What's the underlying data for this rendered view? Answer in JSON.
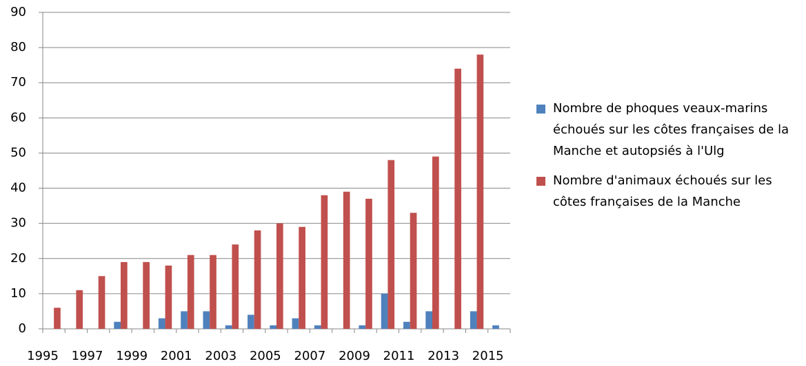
{
  "chart_data": {
    "type": "bar",
    "categories": [
      "1995",
      null,
      "1997",
      null,
      "1999",
      null,
      "2001",
      null,
      "2003",
      null,
      "2005",
      null,
      "2007",
      null,
      "2009",
      null,
      "2011",
      null,
      "2013",
      null,
      "2015"
    ],
    "series": [
      {
        "name": "Nombre de phoques veaux-marins échoués sur les côtes françaises de la Manche et autopsiés à l'Ulg",
        "color": "#4f81bd",
        "values": [
          0,
          0,
          0,
          2,
          0,
          3,
          5,
          5,
          1,
          4,
          1,
          3,
          1,
          0,
          1,
          10,
          2,
          5,
          0,
          5,
          1
        ]
      },
      {
        "name": "Nombre d'animaux échoués sur les côtes françaises de la Manche",
        "color": "#c0504d",
        "values": [
          6,
          11,
          15,
          19,
          19,
          18,
          21,
          21,
          24,
          28,
          30,
          29,
          38,
          39,
          37,
          48,
          33,
          49,
          74,
          78,
          0
        ]
      }
    ],
    "ylim": [
      0,
      90
    ],
    "yticks": [
      0,
      10,
      20,
      30,
      40,
      50,
      60,
      70,
      80,
      90
    ],
    "grid": true,
    "legend": "right"
  }
}
